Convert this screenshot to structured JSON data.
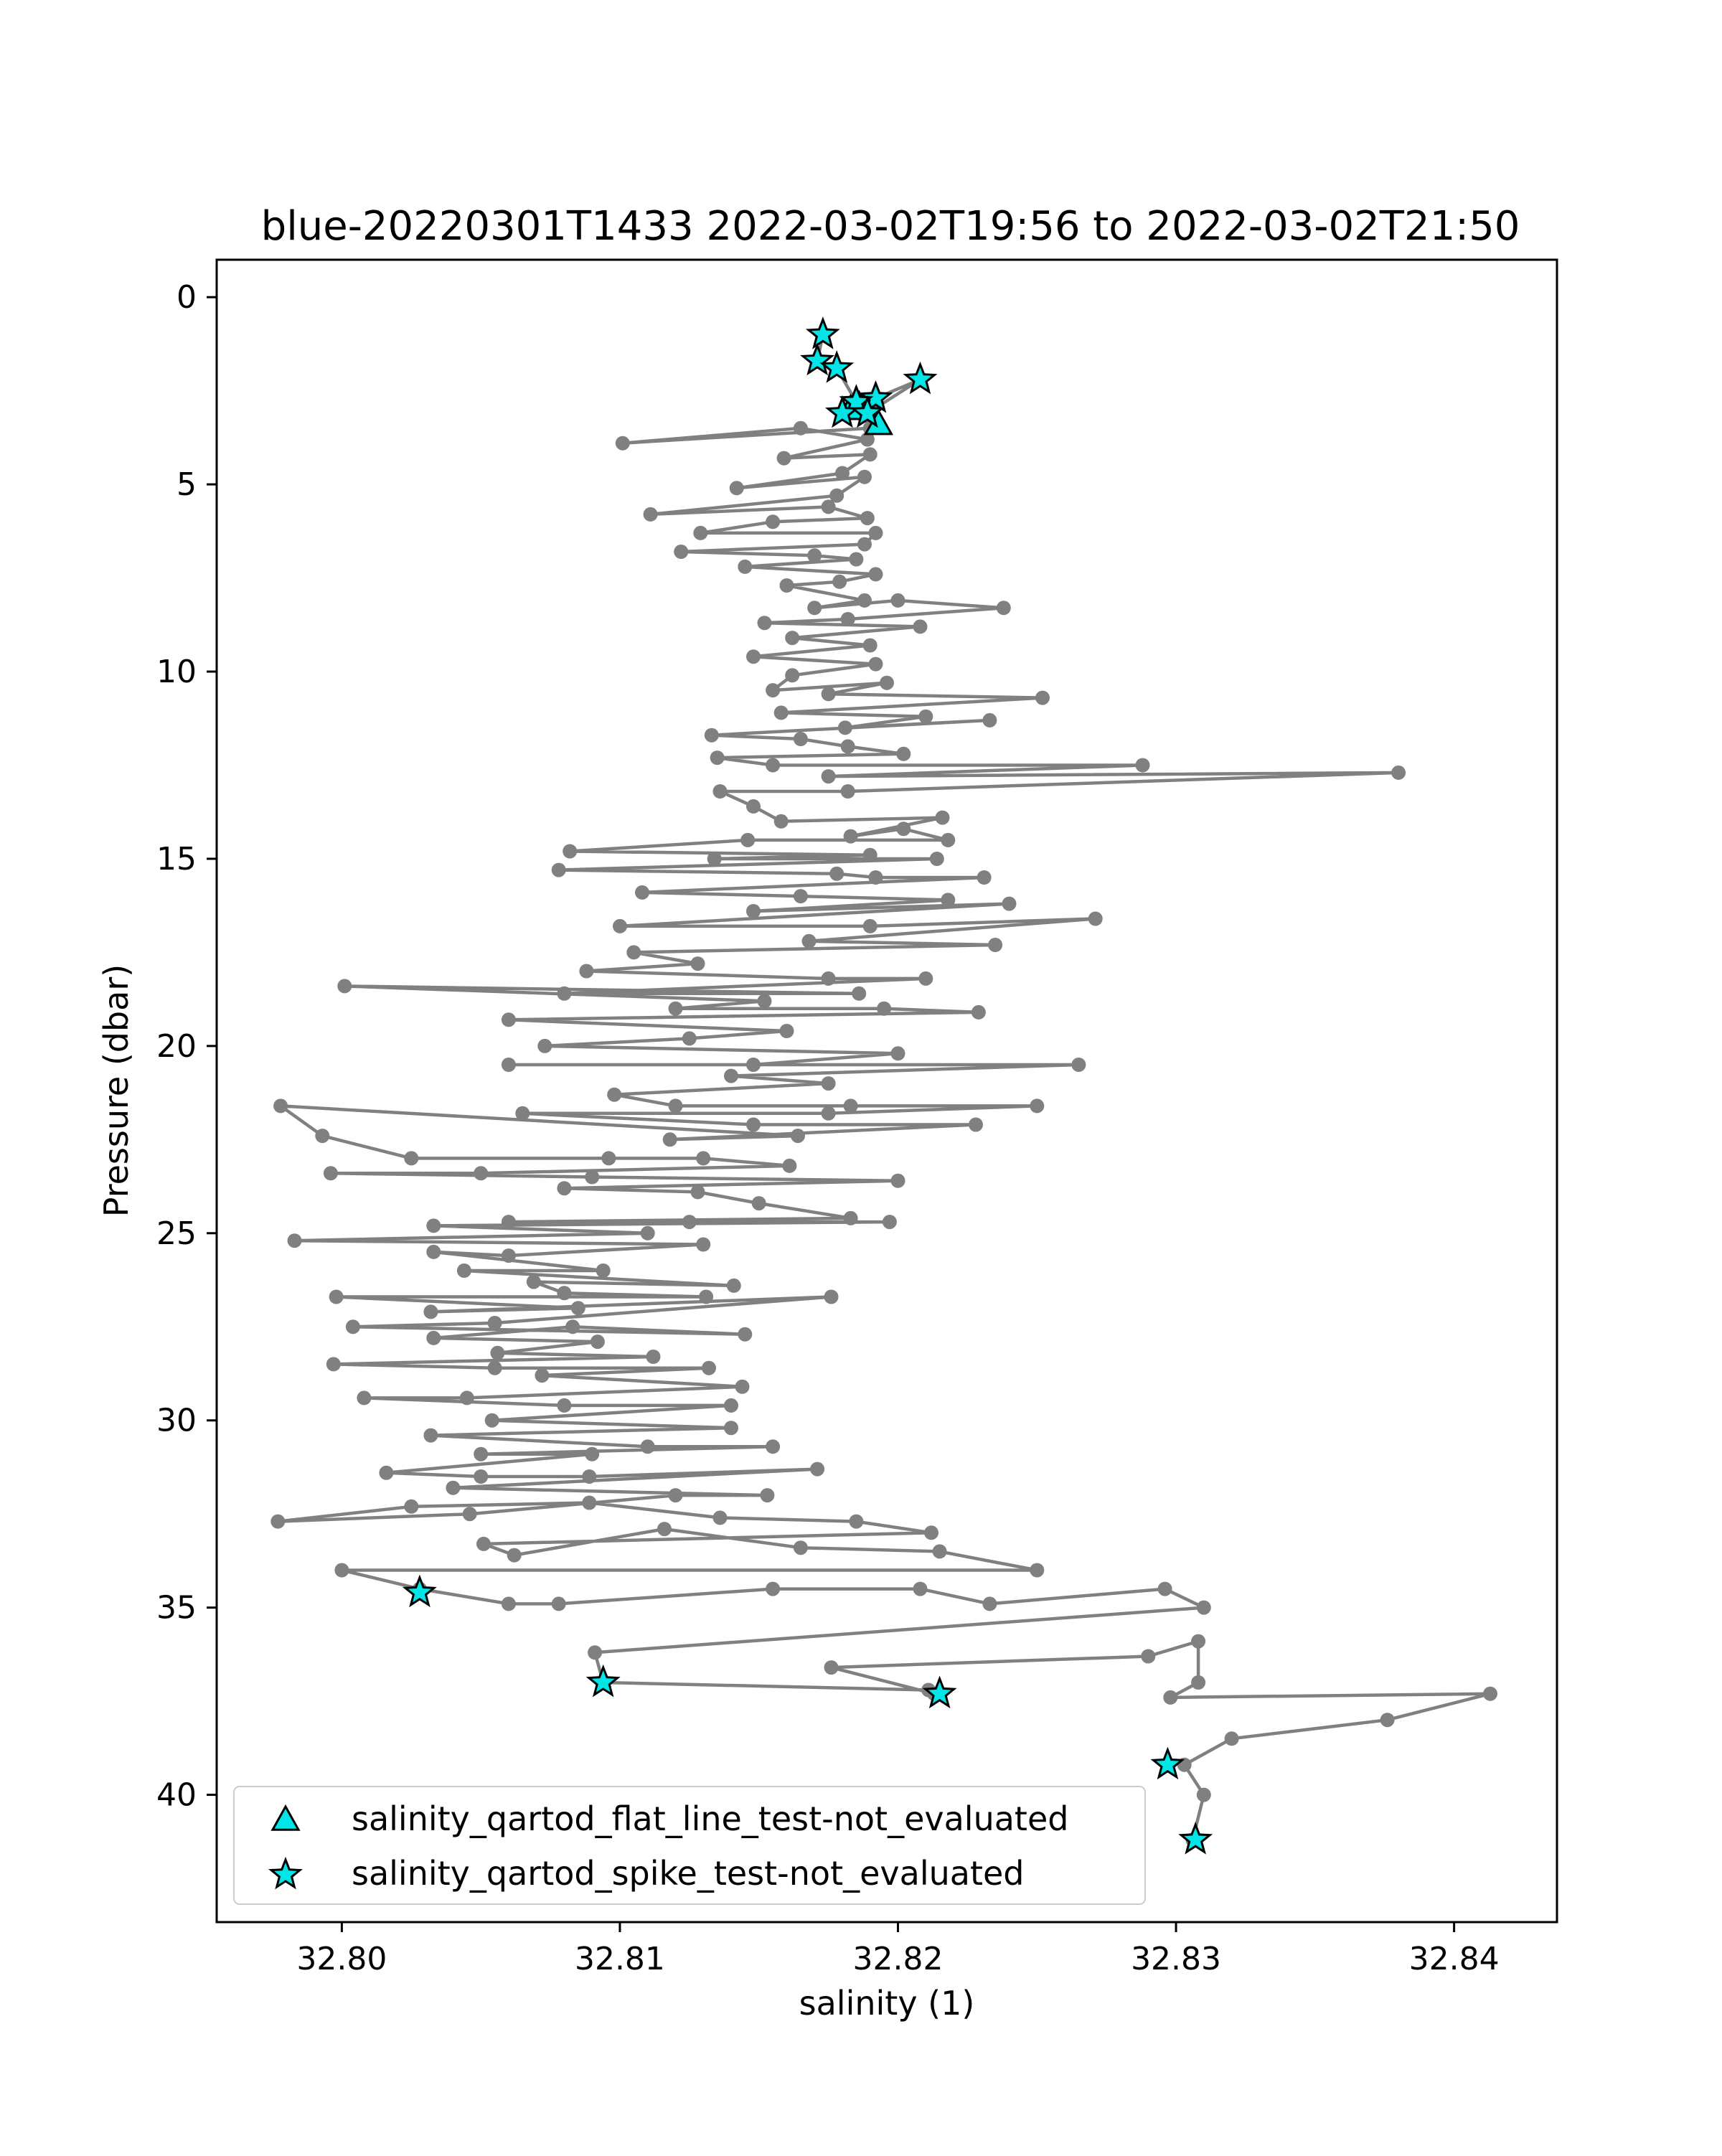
{
  "chart_data": {
    "type": "scatter",
    "title": "blue-20220301T1433 2022-03-02T19:56 to 2022-03-02T21:50",
    "xlabel": "salinity (1)",
    "ylabel": "Pressure (dbar)",
    "xlim": [
      32.7955,
      32.8437
    ],
    "ylim": [
      43.4,
      -1.0
    ],
    "y_inverted": true,
    "x_ticks": [
      "32.80",
      "32.81",
      "32.82",
      "32.83",
      "32.84"
    ],
    "x_tick_values": [
      32.8,
      32.81,
      32.82,
      32.83,
      32.84
    ],
    "y_ticks": [
      "0",
      "5",
      "10",
      "15",
      "20",
      "25",
      "30",
      "35",
      "40"
    ],
    "y_tick_values": [
      0,
      5,
      10,
      15,
      20,
      25,
      30,
      35,
      40
    ],
    "grid": false,
    "legend_position": "lower-left",
    "colors": {
      "profile_line": "#808080",
      "flag_marker": "#00e5e5",
      "marker_edge": "#000000"
    },
    "series": [
      {
        "kind": "profile",
        "points": [
          [
            32.8173,
            1.0
          ],
          [
            32.8171,
            1.7
          ],
          [
            32.8178,
            1.9
          ],
          [
            32.8185,
            2.8
          ],
          [
            32.8192,
            2.7
          ],
          [
            32.8208,
            2.2
          ],
          [
            32.8189,
            3.1
          ],
          [
            32.818,
            3.1
          ],
          [
            32.8192,
            3.4
          ],
          [
            32.819,
            3.5
          ],
          [
            32.8101,
            3.9
          ],
          [
            32.8165,
            3.5
          ],
          [
            32.8189,
            3.8
          ],
          [
            32.8159,
            4.3
          ],
          [
            32.819,
            4.2
          ],
          [
            32.818,
            4.7
          ],
          [
            32.8142,
            5.1
          ],
          [
            32.8188,
            4.8
          ],
          [
            32.8178,
            5.3
          ],
          [
            32.8111,
            5.8
          ],
          [
            32.8175,
            5.6
          ],
          [
            32.8189,
            5.9
          ],
          [
            32.8155,
            6.0
          ],
          [
            32.8129,
            6.3
          ],
          [
            32.8192,
            6.3
          ],
          [
            32.8188,
            6.6
          ],
          [
            32.8122,
            6.8
          ],
          [
            32.817,
            6.9
          ],
          [
            32.8185,
            7.0
          ],
          [
            32.8145,
            7.2
          ],
          [
            32.8192,
            7.4
          ],
          [
            32.8179,
            7.6
          ],
          [
            32.816,
            7.7
          ],
          [
            32.8188,
            8.1
          ],
          [
            32.817,
            8.3
          ],
          [
            32.82,
            8.1
          ],
          [
            32.8238,
            8.3
          ],
          [
            32.8182,
            8.6
          ],
          [
            32.8152,
            8.7
          ],
          [
            32.8208,
            8.8
          ],
          [
            32.8162,
            9.1
          ],
          [
            32.819,
            9.3
          ],
          [
            32.8148,
            9.6
          ],
          [
            32.8192,
            9.8
          ],
          [
            32.8162,
            10.1
          ],
          [
            32.8155,
            10.5
          ],
          [
            32.8196,
            10.3
          ],
          [
            32.8175,
            10.6
          ],
          [
            32.8252,
            10.7
          ],
          [
            32.8158,
            11.1
          ],
          [
            32.821,
            11.2
          ],
          [
            32.8181,
            11.5
          ],
          [
            32.8233,
            11.3
          ],
          [
            32.8133,
            11.7
          ],
          [
            32.8165,
            11.8
          ],
          [
            32.8182,
            12.0
          ],
          [
            32.8202,
            12.2
          ],
          [
            32.8135,
            12.3
          ],
          [
            32.8155,
            12.5
          ],
          [
            32.8288,
            12.5
          ],
          [
            32.8175,
            12.8
          ],
          [
            32.838,
            12.7
          ],
          [
            32.8182,
            13.2
          ],
          [
            32.8136,
            13.2
          ],
          [
            32.8148,
            13.6
          ],
          [
            32.8158,
            14.0
          ],
          [
            32.8216,
            13.9
          ],
          [
            32.8183,
            14.4
          ],
          [
            32.8202,
            14.2
          ],
          [
            32.8218,
            14.5
          ],
          [
            32.8146,
            14.5
          ],
          [
            32.8082,
            14.8
          ],
          [
            32.819,
            14.9
          ],
          [
            32.8134,
            15.0
          ],
          [
            32.8214,
            15.0
          ],
          [
            32.8078,
            15.3
          ],
          [
            32.8178,
            15.4
          ],
          [
            32.8192,
            15.5
          ],
          [
            32.8231,
            15.5
          ],
          [
            32.8108,
            15.9
          ],
          [
            32.8165,
            16.0
          ],
          [
            32.8218,
            16.1
          ],
          [
            32.8148,
            16.4
          ],
          [
            32.824,
            16.2
          ],
          [
            32.81,
            16.8
          ],
          [
            32.819,
            16.8
          ],
          [
            32.8271,
            16.6
          ],
          [
            32.8168,
            17.2
          ],
          [
            32.8235,
            17.3
          ],
          [
            32.8105,
            17.5
          ],
          [
            32.8128,
            17.8
          ],
          [
            32.8088,
            18.0
          ],
          [
            32.8175,
            18.2
          ],
          [
            32.821,
            18.2
          ],
          [
            32.808,
            18.6
          ],
          [
            32.8186,
            18.6
          ],
          [
            32.8001,
            18.4
          ],
          [
            32.8152,
            18.8
          ],
          [
            32.812,
            19.0
          ],
          [
            32.8195,
            19.0
          ],
          [
            32.8229,
            19.1
          ],
          [
            32.806,
            19.3
          ],
          [
            32.816,
            19.6
          ],
          [
            32.8125,
            19.8
          ],
          [
            32.8073,
            20.0
          ],
          [
            32.82,
            20.2
          ],
          [
            32.8148,
            20.5
          ],
          [
            32.806,
            20.5
          ],
          [
            32.8265,
            20.5
          ],
          [
            32.814,
            20.8
          ],
          [
            32.8175,
            21.0
          ],
          [
            32.8098,
            21.3
          ],
          [
            32.812,
            21.6
          ],
          [
            32.8183,
            21.6
          ],
          [
            32.825,
            21.6
          ],
          [
            32.8175,
            21.8
          ],
          [
            32.8065,
            21.8
          ],
          [
            32.8148,
            22.1
          ],
          [
            32.8228,
            22.1
          ],
          [
            32.8118,
            22.5
          ],
          [
            32.8164,
            22.4
          ],
          [
            32.7978,
            21.6
          ],
          [
            32.7993,
            22.4
          ],
          [
            32.8025,
            23.0
          ],
          [
            32.8096,
            23.0
          ],
          [
            32.813,
            23.0
          ],
          [
            32.8161,
            23.2
          ],
          [
            32.805,
            23.4
          ],
          [
            32.7996,
            23.4
          ],
          [
            32.809,
            23.5
          ],
          [
            32.82,
            23.6
          ],
          [
            32.808,
            23.8
          ],
          [
            32.8128,
            23.9
          ],
          [
            32.815,
            24.2
          ],
          [
            32.8183,
            24.6
          ],
          [
            32.806,
            24.7
          ],
          [
            32.8125,
            24.7
          ],
          [
            32.8197,
            24.7
          ],
          [
            32.8033,
            24.8
          ],
          [
            32.811,
            25.0
          ],
          [
            32.7983,
            25.2
          ],
          [
            32.813,
            25.3
          ],
          [
            32.806,
            25.6
          ],
          [
            32.8033,
            25.5
          ],
          [
            32.8094,
            26.0
          ],
          [
            32.8044,
            26.0
          ],
          [
            32.8141,
            26.4
          ],
          [
            32.8069,
            26.3
          ],
          [
            32.808,
            26.6
          ],
          [
            32.8131,
            26.7
          ],
          [
            32.7998,
            26.7
          ],
          [
            32.8085,
            27.0
          ],
          [
            32.8032,
            27.1
          ],
          [
            32.8176,
            26.7
          ],
          [
            32.8055,
            27.4
          ],
          [
            32.8004,
            27.5
          ],
          [
            32.8145,
            27.7
          ],
          [
            32.8083,
            27.5
          ],
          [
            32.8033,
            27.8
          ],
          [
            32.8092,
            27.9
          ],
          [
            32.8056,
            28.2
          ],
          [
            32.8112,
            28.3
          ],
          [
            32.7997,
            28.5
          ],
          [
            32.8055,
            28.6
          ],
          [
            32.8132,
            28.6
          ],
          [
            32.8072,
            28.8
          ],
          [
            32.8144,
            29.1
          ],
          [
            32.8045,
            29.4
          ],
          [
            32.8008,
            29.4
          ],
          [
            32.808,
            29.6
          ],
          [
            32.814,
            29.6
          ],
          [
            32.8054,
            30.0
          ],
          [
            32.814,
            30.2
          ],
          [
            32.8032,
            30.4
          ],
          [
            32.811,
            30.7
          ],
          [
            32.8155,
            30.7
          ],
          [
            32.805,
            30.9
          ],
          [
            32.809,
            30.9
          ],
          [
            32.8016,
            31.4
          ],
          [
            32.805,
            31.5
          ],
          [
            32.8089,
            31.5
          ],
          [
            32.8171,
            31.3
          ],
          [
            32.804,
            31.8
          ],
          [
            32.8153,
            32.0
          ],
          [
            32.812,
            32.0
          ],
          [
            32.8046,
            32.5
          ],
          [
            32.7977,
            32.7
          ],
          [
            32.8025,
            32.3
          ],
          [
            32.8089,
            32.2
          ],
          [
            32.8136,
            32.6
          ],
          [
            32.8185,
            32.7
          ],
          [
            32.8212,
            33.0
          ],
          [
            32.8051,
            33.3
          ],
          [
            32.8062,
            33.6
          ],
          [
            32.8116,
            32.9
          ],
          [
            32.8165,
            33.4
          ],
          [
            32.8215,
            33.5
          ],
          [
            32.825,
            34.0
          ],
          [
            32.8,
            34.0
          ],
          [
            32.8028,
            34.5
          ],
          [
            32.806,
            34.9
          ],
          [
            32.8078,
            34.9
          ],
          [
            32.8155,
            34.5
          ],
          [
            32.8208,
            34.5
          ],
          [
            32.8233,
            34.9
          ],
          [
            32.8296,
            34.5
          ],
          [
            32.831,
            35.0
          ],
          [
            32.8091,
            36.2
          ],
          [
            32.8094,
            37.0
          ],
          [
            32.8211,
            37.2
          ],
          [
            32.8213,
            37.3
          ],
          [
            32.8176,
            36.6
          ],
          [
            32.829,
            36.3
          ],
          [
            32.8308,
            35.9
          ],
          [
            32.8308,
            37.0
          ],
          [
            32.8298,
            37.4
          ],
          [
            32.8413,
            37.3
          ],
          [
            32.8376,
            38.0
          ],
          [
            32.832,
            38.5
          ],
          [
            32.8303,
            39.2
          ],
          [
            32.831,
            40.0
          ],
          [
            32.8306,
            41.2
          ]
        ]
      },
      {
        "name": "salinity_qartod_flat_line_test-not_evaluated",
        "marker": "triangle",
        "points": [
          [
            32.8186,
            2.9
          ],
          [
            32.8193,
            3.4
          ],
          [
            32.8183,
            3.0
          ]
        ]
      },
      {
        "name": "salinity_qartod_spike_test-not_evaluated",
        "marker": "star",
        "points": [
          [
            32.8173,
            1.0
          ],
          [
            32.8171,
            1.7
          ],
          [
            32.8178,
            1.9
          ],
          [
            32.8208,
            2.2
          ],
          [
            32.8192,
            2.7
          ],
          [
            32.8185,
            2.8
          ],
          [
            32.818,
            3.1
          ],
          [
            32.8189,
            3.1
          ],
          [
            32.8028,
            34.6
          ],
          [
            32.8094,
            37.0
          ],
          [
            32.8215,
            37.3
          ],
          [
            32.8297,
            39.2
          ],
          [
            32.8307,
            41.2
          ]
        ]
      }
    ],
    "legend": [
      {
        "marker": "triangle",
        "label": "salinity_qartod_flat_line_test-not_evaluated"
      },
      {
        "marker": "star",
        "label": "salinity_qartod_spike_test-not_evaluated"
      }
    ]
  }
}
